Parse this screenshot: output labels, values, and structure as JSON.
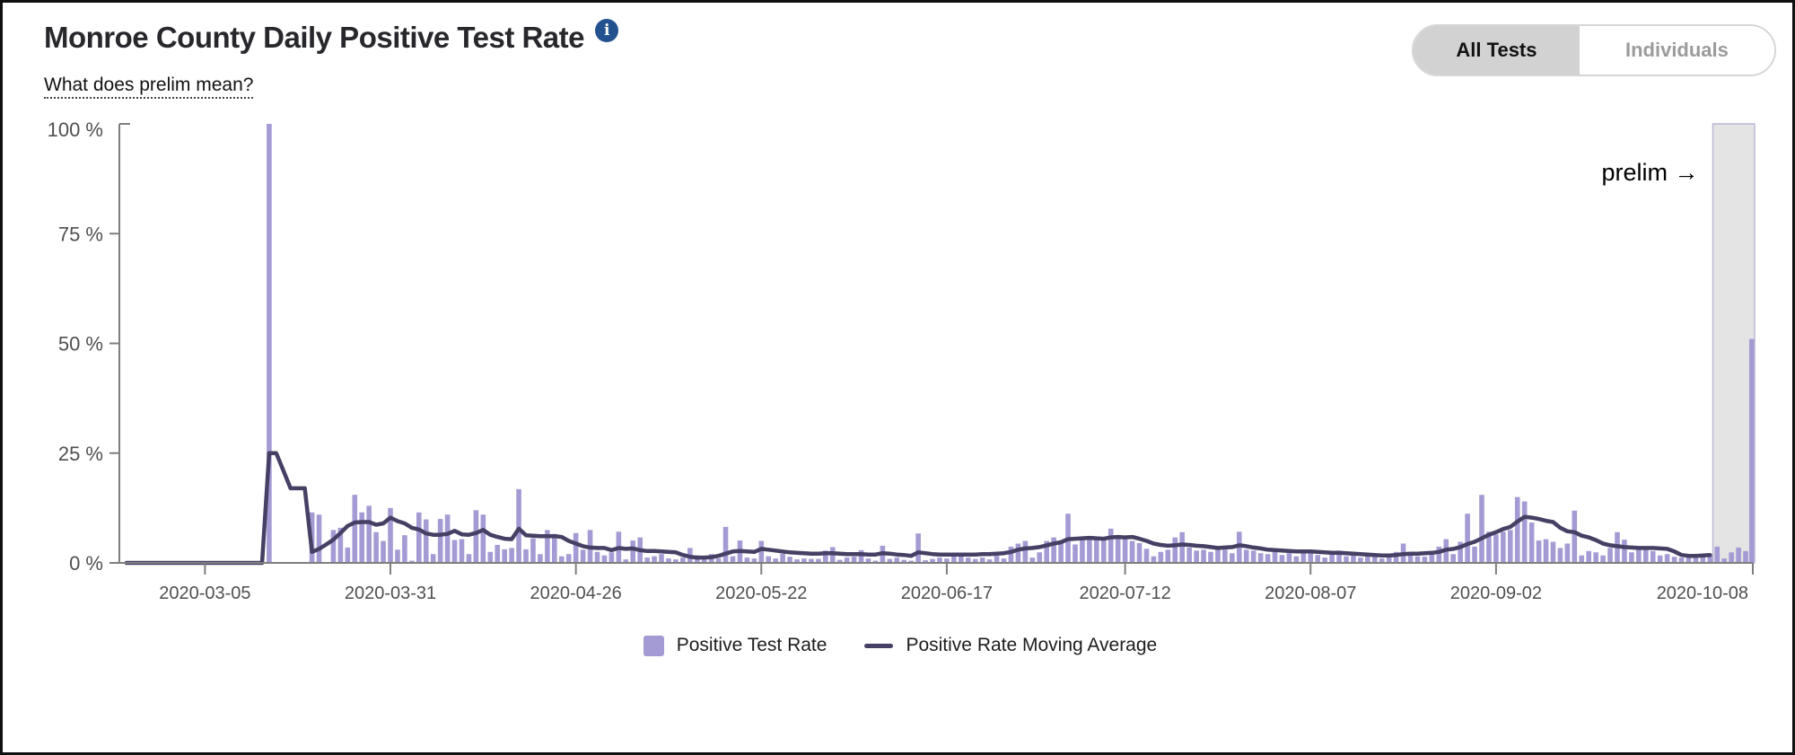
{
  "header": {
    "title": "Monroe County Daily Positive Test Rate",
    "info_icon": "i",
    "prelim_link": "What does prelim mean?"
  },
  "toggle": {
    "options": [
      {
        "label": "All Tests",
        "selected": true
      },
      {
        "label": "Individuals",
        "selected": false
      }
    ]
  },
  "legend": {
    "items": [
      {
        "label": "Positive Test Rate",
        "type": "bar"
      },
      {
        "label": "Positive Rate Moving Average",
        "type": "line"
      }
    ]
  },
  "colors": {
    "bar": "#a49bd4",
    "line": "#454064",
    "axis": "#7e7e7e",
    "tick_label": "#4f4f4f",
    "prelim_fill": "#e4e4e4",
    "prelim_border": "#bcb7d6",
    "info_icon_bg": "#23528f",
    "toggle_selected_bg": "#d2d2d2"
  },
  "chart_data": {
    "type": "bar",
    "title": "Monroe County Daily Positive Test Rate",
    "xlabel": "",
    "ylabel": "",
    "ylim": [
      0,
      100
    ],
    "grid": false,
    "legend_position": "bottom",
    "x_daily_from": "2020-02-22",
    "x_daily_to": "2020-10-08",
    "xlim": [
      "2020-02-22",
      "2020-10-08"
    ],
    "xticks": [
      "2020-03-05",
      "2020-03-31",
      "2020-04-26",
      "2020-05-22",
      "2020-06-17",
      "2020-07-12",
      "2020-08-07",
      "2020-09-02",
      "2020-10-08"
    ],
    "ytick_values": [
      0,
      25,
      50,
      75,
      100
    ],
    "ytick_labels": [
      "0 %",
      "25 %",
      "50 %",
      "75 %",
      "100 %"
    ],
    "prelim_region": {
      "start": "2020-10-03",
      "end": "2020-10-08",
      "annotation": "prelim →"
    },
    "series": [
      {
        "name": "Positive Test Rate",
        "type": "bar",
        "values": [
          0,
          0,
          0,
          0,
          0,
          0,
          0,
          0,
          0,
          0,
          0,
          0,
          0,
          0,
          0,
          0,
          0,
          0,
          0,
          0,
          0,
          100,
          0,
          0,
          0,
          0,
          0,
          11.5,
          11,
          0,
          7.5,
          8,
          3.5,
          15.5,
          11.5,
          13,
          7,
          5,
          12.5,
          3,
          6.3,
          0.5,
          11.5,
          9.9,
          2,
          10,
          11,
          5.2,
          5.4,
          2,
          12,
          11,
          2.5,
          4.1,
          3.1,
          3.4,
          16.8,
          3.1,
          5.6,
          2,
          7.5,
          6.6,
          1.5,
          2,
          6.8,
          3,
          7.5,
          2.5,
          1.7,
          2.4,
          7.1,
          0.8,
          5.1,
          5.8,
          1.2,
          1.5,
          2,
          1,
          0.8,
          1.2,
          3.4,
          1.7,
          0.8,
          2,
          1,
          8.2,
          1.5,
          5.1,
          1.2,
          1,
          5,
          1.5,
          1,
          2.1,
          1.4,
          0.8,
          1,
          0.9,
          0.9,
          2.8,
          3.6,
          0.7,
          1.2,
          1.4,
          2.9,
          1,
          0.5,
          3.9,
          0.9,
          1.2,
          0.7,
          0.5,
          6.7,
          0.6,
          0.9,
          1.2,
          1,
          1.6,
          1.7,
          1.2,
          0.9,
          1.2,
          0.8,
          1.6,
          1,
          3.7,
          4.4,
          5,
          1.2,
          2.4,
          5,
          5.8,
          5.1,
          11.2,
          4.2,
          5.5,
          6,
          6,
          5.5,
          7.8,
          5.5,
          6,
          5,
          4.5,
          3.2,
          1.5,
          2.5,
          3,
          5.8,
          7,
          3.5,
          2.8,
          3,
          2.5,
          3.2,
          3,
          2.2,
          7.1,
          3,
          2.8,
          2.2,
          2,
          2.5,
          1.8,
          2.2,
          1.5,
          3,
          2.6,
          1.8,
          1.2,
          2,
          2.8,
          1.5,
          1.8,
          1.2,
          2.2,
          1.5,
          1,
          1.8,
          2.5,
          4.4,
          2,
          1.5,
          1.4,
          2,
          3.7,
          5.4,
          2,
          4.8,
          11.2,
          3.7,
          15.5,
          7.1,
          6.5,
          7.1,
          7.5,
          15,
          14,
          9.2,
          5.1,
          5.4,
          4.8,
          3.4,
          4.4,
          11.9,
          1.7,
          2.7,
          2.4,
          1.7,
          3.4,
          7,
          5.3,
          2.4,
          3,
          3,
          2.7,
          1.7,
          2,
          1.4,
          1.2,
          1.5,
          1.7,
          1.5,
          1.8,
          3.7,
          1,
          2.4,
          3.5,
          2.7,
          51
        ]
      },
      {
        "name": "Positive Rate Moving Average",
        "type": "line",
        "values": [
          null,
          0,
          0,
          0,
          0,
          0,
          0,
          0,
          0,
          0,
          0,
          0,
          0,
          0,
          0,
          0,
          0,
          0,
          0,
          0,
          0,
          25,
          25,
          21,
          17,
          17,
          17,
          2.5,
          3.2,
          4.2,
          5.3,
          6.8,
          8.4,
          9.2,
          9.3,
          9.3,
          8.7,
          9,
          10.3,
          9.5,
          9,
          8,
          7.6,
          6.7,
          6.4,
          6.4,
          6.6,
          7.3,
          6.5,
          6.4,
          6.8,
          7.5,
          6.4,
          5.9,
          5.5,
          5.4,
          7.8,
          6.3,
          6.2,
          6.1,
          6.1,
          6.1,
          5.9,
          5,
          4.4,
          3.8,
          3.5,
          3.4,
          3.4,
          2.9,
          3.4,
          3.2,
          3.3,
          2.9,
          2.7,
          2.7,
          2.6,
          2.5,
          2.4,
          1.8,
          1.4,
          1.2,
          1.2,
          1.3,
          1.6,
          2.1,
          2.6,
          2.7,
          2.6,
          2.5,
          3.2,
          3,
          2.8,
          2.6,
          2.4,
          2.3,
          2.2,
          2.1,
          2.1,
          2.2,
          2.2,
          2.1,
          2,
          2,
          2,
          1.9,
          1.9,
          2.2,
          2.1,
          1.9,
          1.8,
          1.6,
          2.4,
          2.2,
          2,
          1.9,
          1.9,
          1.9,
          1.9,
          1.9,
          1.9,
          2,
          2,
          2.1,
          2.2,
          2.5,
          3,
          3.3,
          3.4,
          3.6,
          4,
          4.4,
          4.7,
          5.4,
          5.5,
          5.6,
          5.7,
          5.6,
          5.5,
          5.8,
          5.9,
          5.8,
          5.9,
          5.5,
          5,
          4.4,
          4.1,
          3.9,
          4,
          4.2,
          4.1,
          3.9,
          3.8,
          3.6,
          3.4,
          3.5,
          3.6,
          4,
          3.8,
          3.5,
          3.3,
          3,
          2.9,
          2.8,
          2.7,
          2.6,
          2.6,
          2.6,
          2.5,
          2.4,
          2.3,
          2.3,
          2.2,
          2.1,
          2,
          1.9,
          1.8,
          1.7,
          1.7,
          1.8,
          2,
          2.1,
          2.1,
          2.2,
          2.3,
          2.5,
          3,
          3.2,
          3.6,
          4.3,
          4.8,
          5.6,
          6.4,
          7,
          7.7,
          8.2,
          9.4,
          10.5,
          10.3,
          10,
          9.6,
          9.3,
          8,
          7.2,
          7,
          6.2,
          5.8,
          5.2,
          4.4,
          4,
          3.8,
          3.6,
          3.5,
          3.4,
          3.4,
          3.4,
          3.3,
          3.2,
          2.6,
          1.8,
          1.6,
          1.6,
          1.7,
          1.8,
          null,
          null,
          null,
          null,
          null,
          null
        ]
      }
    ]
  }
}
